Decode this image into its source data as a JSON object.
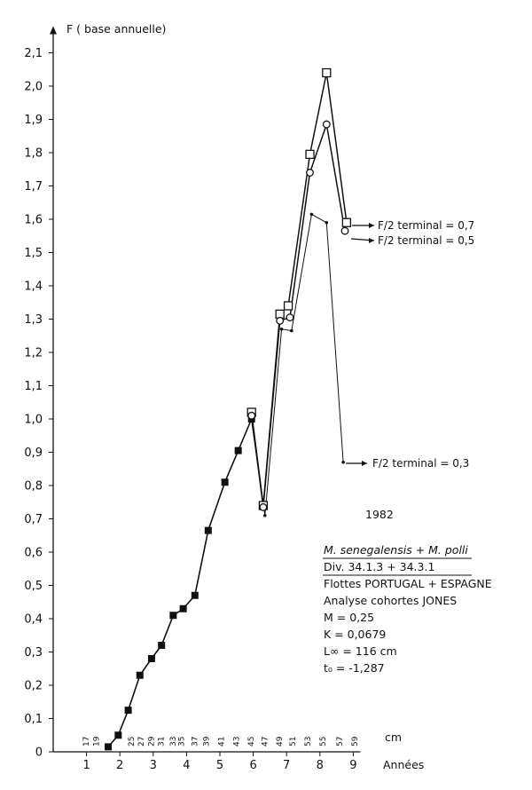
{
  "chart_data": {
    "type": "line",
    "ylabel": "F ( base annuelle)",
    "xlabel": "Années",
    "x2label": "cm",
    "ylim": [
      0,
      2.1
    ],
    "xlim": [
      0,
      9
    ],
    "y_ticks": [
      "0",
      "0,1",
      "0,2",
      "0,3",
      "0,4",
      "0,5",
      "0,6",
      "0,7",
      "0,8",
      "0,9",
      "1,0",
      "1,1",
      "1,2",
      "1,3",
      "1,4",
      "1,5",
      "1,6",
      "1,7",
      "1,8",
      "1,9",
      "2,0",
      "2,1"
    ],
    "x_ticks": [
      "1",
      "2",
      "3",
      "4",
      "5",
      "6",
      "7",
      "8",
      "9"
    ],
    "cm_ticks": [
      {
        "label": "17",
        "x": 1.0
      },
      {
        "label": "19",
        "x": 1.3
      },
      {
        "label": "25",
        "x": 2.35
      },
      {
        "label": "27",
        "x": 2.65
      },
      {
        "label": "29",
        "x": 2.95
      },
      {
        "label": "31",
        "x": 3.25
      },
      {
        "label": "33",
        "x": 3.6
      },
      {
        "label": "35",
        "x": 3.85
      },
      {
        "label": "37",
        "x": 4.25
      },
      {
        "label": "39",
        "x": 4.6
      },
      {
        "label": "41",
        "x": 5.05
      },
      {
        "label": "43",
        "x": 5.5
      },
      {
        "label": "45",
        "x": 5.95
      },
      {
        "label": "47",
        "x": 6.35
      },
      {
        "label": "49",
        "x": 6.8
      },
      {
        "label": "51",
        "x": 7.2
      },
      {
        "label": "53",
        "x": 7.65
      },
      {
        "label": "55",
        "x": 8.1
      },
      {
        "label": "57",
        "x": 8.6
      },
      {
        "label": "59",
        "x": 9.05
      }
    ],
    "common_series": {
      "x": [
        1.65,
        1.95,
        2.25,
        2.6,
        2.95,
        3.25,
        3.6,
        3.9,
        4.25,
        4.65,
        5.15,
        5.55,
        5.95
      ],
      "y": [
        0.015,
        0.05,
        0.125,
        0.23,
        0.28,
        0.32,
        0.41,
        0.43,
        0.47,
        0.665,
        0.81,
        0.905,
        1.0
      ]
    },
    "series": [
      {
        "name": "F/2 terminal = 0,7",
        "marker": "square",
        "x": [
          5.95,
          6.3,
          6.8,
          7.05,
          7.7,
          8.2,
          8.8
        ],
        "y": [
          1.02,
          0.74,
          1.315,
          1.34,
          1.795,
          2.04,
          1.59
        ]
      },
      {
        "name": "F/2 terminal = 0,5",
        "marker": "circle",
        "x": [
          5.95,
          6.3,
          6.8,
          7.1,
          7.7,
          8.2,
          8.75
        ],
        "y": [
          1.01,
          0.735,
          1.295,
          1.305,
          1.74,
          1.885,
          1.565
        ]
      },
      {
        "name": "F/2 terminal = 0,3",
        "marker": "dot",
        "x": [
          5.95,
          6.35,
          6.85,
          7.15,
          7.75,
          8.2,
          8.7
        ],
        "y": [
          0.995,
          0.71,
          1.27,
          1.265,
          1.615,
          1.59,
          0.87
        ]
      }
    ],
    "annotations": [
      "1982",
      "M. senegalensis + M. polli",
      "Div. 34.1.3 + 34.3.1",
      "Flottes PORTUGAL + ESPAGNE",
      "Analyse cohortes JONES",
      "M = 0,25",
      "K = 0,0679",
      "L∞ = 116 cm",
      "t₀ = -1,287"
    ]
  }
}
